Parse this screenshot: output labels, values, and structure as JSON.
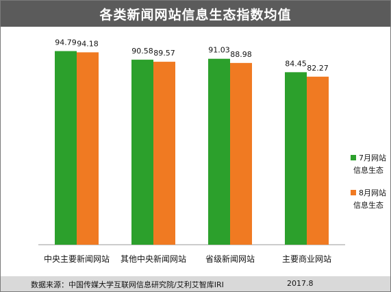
{
  "colors": {
    "header_bg": "#5b5b5b",
    "series_july": "#2ca02c",
    "series_august": "#f07a22",
    "footer_bg": "#d9d9d9"
  },
  "footer": {
    "source": "数据来源：中国传媒大学互联网信息研究院/艾利艾智库IRI",
    "date": "2017.8"
  },
  "chart_data": {
    "type": "bar",
    "title": "各类新闻网站信息生态指数均值",
    "categories": [
      "中央主要新闻网站",
      "其他中央新闻网站",
      "省级新闻网站",
      "主要商业网站"
    ],
    "series": [
      {
        "name": "7月网站信息生态",
        "legend_lines": [
          "7月网站",
          "信息生态"
        ],
        "color": "#2ca02c",
        "values": [
          94.79,
          90.58,
          91.03,
          84.45
        ]
      },
      {
        "name": "8月网站信息生态",
        "legend_lines": [
          "8月网站",
          "信息生态"
        ],
        "color": "#f07a22",
        "values": [
          94.18,
          89.57,
          88.98,
          82.27
        ]
      }
    ],
    "value_labels": [
      [
        "94.79",
        "90.58",
        "91.03",
        "84.45"
      ],
      [
        "94.18",
        "89.57",
        "88.98",
        "82.27"
      ]
    ],
    "ylim": [
      0,
      100
    ],
    "grid": false,
    "legend_position": "right"
  }
}
